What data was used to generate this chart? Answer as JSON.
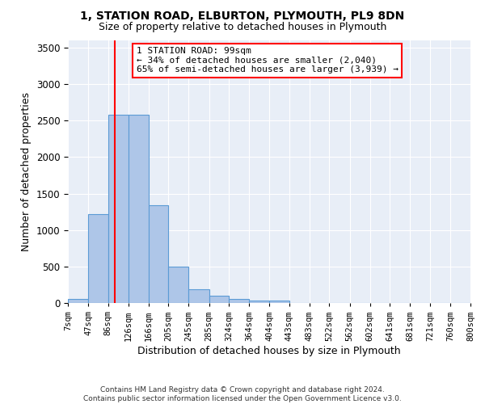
{
  "title1": "1, STATION ROAD, ELBURTON, PLYMOUTH, PL9 8DN",
  "title2": "Size of property relative to detached houses in Plymouth",
  "xlabel": "Distribution of detached houses by size in Plymouth",
  "ylabel": "Number of detached properties",
  "bin_labels": [
    "7sqm",
    "47sqm",
    "86sqm",
    "126sqm",
    "166sqm",
    "205sqm",
    "245sqm",
    "285sqm",
    "324sqm",
    "364sqm",
    "404sqm",
    "443sqm",
    "483sqm",
    "522sqm",
    "562sqm",
    "602sqm",
    "641sqm",
    "681sqm",
    "721sqm",
    "760sqm",
    "800sqm"
  ],
  "bin_edges": [
    7,
    47,
    86,
    126,
    166,
    205,
    245,
    285,
    324,
    364,
    404,
    443,
    483,
    522,
    562,
    602,
    641,
    681,
    721,
    760,
    800
  ],
  "bar_heights": [
    50,
    1220,
    2580,
    2580,
    1340,
    500,
    190,
    100,
    50,
    30,
    30,
    0,
    0,
    0,
    0,
    0,
    0,
    0,
    0,
    0
  ],
  "bar_color": "#aec6e8",
  "bar_edgecolor": "#5b9bd5",
  "bar_linewidth": 0.8,
  "bg_color": "#e8eef7",
  "grid_color": "#ffffff",
  "redline_x": 99,
  "annotation_title": "1 STATION ROAD: 99sqm",
  "annotation_line1": "← 34% of detached houses are smaller (2,040)",
  "annotation_line2": "65% of semi-detached houses are larger (3,939) →",
  "ylim": [
    0,
    3600
  ],
  "yticks": [
    0,
    500,
    1000,
    1500,
    2000,
    2500,
    3000,
    3500
  ],
  "footer1": "Contains HM Land Registry data © Crown copyright and database right 2024.",
  "footer2": "Contains public sector information licensed under the Open Government Licence v3.0."
}
